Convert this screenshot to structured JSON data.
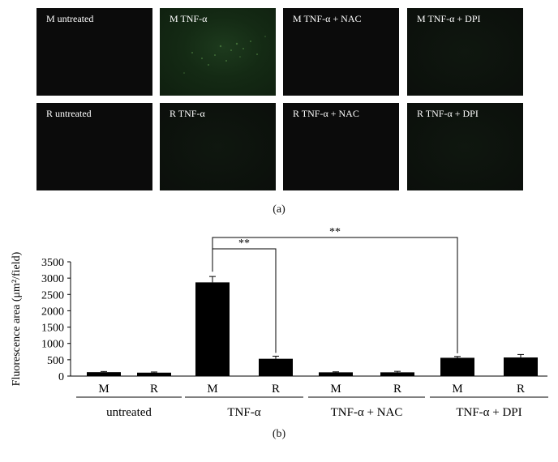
{
  "figure": {
    "panels": [
      {
        "label": "M untreated"
      },
      {
        "label": "M TNF-α"
      },
      {
        "label": "M TNF-α + NAC"
      },
      {
        "label": "M TNF-α + DPI"
      },
      {
        "label": "R untreated"
      },
      {
        "label": "R TNF-α"
      },
      {
        "label": "R TNF-α + NAC"
      },
      {
        "label": "R TNF-α + DPI"
      }
    ],
    "caption_a": "(a)",
    "caption_b": "(b)"
  },
  "chart_data": {
    "type": "bar",
    "ylabel": "Fluorescence area (μm²/field)",
    "ylim": [
      0,
      3500
    ],
    "yticks": [
      0,
      500,
      1000,
      1500,
      2000,
      2500,
      3000,
      3500
    ],
    "categories": [
      "M",
      "R",
      "M",
      "R",
      "M",
      "R",
      "M",
      "R"
    ],
    "groups": [
      "untreated",
      "TNF-α",
      "TNF-α + NAC",
      "TNF-α + DPI"
    ],
    "values": [
      120,
      105,
      2870,
      530,
      115,
      115,
      560,
      570
    ],
    "errors": [
      20,
      20,
      180,
      80,
      15,
      30,
      40,
      90
    ],
    "bar_color": "#000000",
    "significance": [
      {
        "from": 2,
        "to": 3,
        "label": "**"
      },
      {
        "from": 2,
        "to": 6,
        "label": "**"
      }
    ]
  }
}
